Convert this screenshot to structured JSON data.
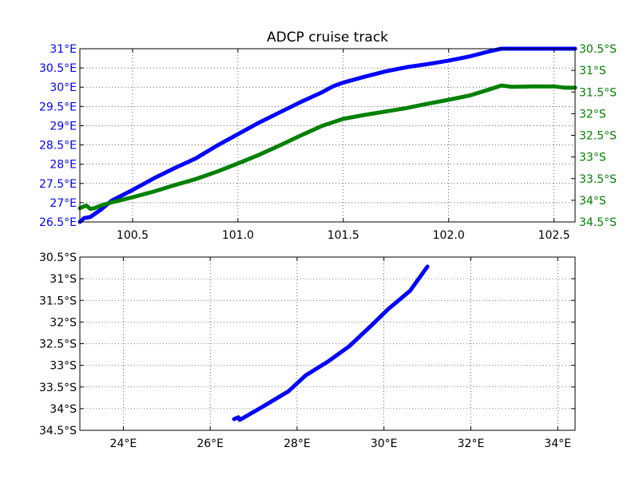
{
  "chart_data": [
    {
      "type": "line",
      "title": "ADCP cruise track",
      "xlabel": "",
      "ylabel": "",
      "xlim": [
        100.25,
        102.6
      ],
      "xticks": [
        100.5,
        101.0,
        101.5,
        102.0,
        102.5
      ],
      "xtick_labels": [
        "100.5",
        "101.0",
        "101.5",
        "102.0",
        "102.5"
      ],
      "grid": true,
      "left_axis": {
        "color": "#0000ff",
        "ylim": [
          26.5,
          31.0
        ],
        "ticks": [
          26.5,
          27.0,
          27.5,
          28.0,
          28.5,
          29.0,
          29.5,
          30.0,
          30.5,
          31.0
        ],
        "tick_labels": [
          "26.5°E",
          "27°E",
          "27.5°E",
          "28°E",
          "28.5°E",
          "29°E",
          "29.5°E",
          "30°E",
          "30.5°E",
          "31°E"
        ]
      },
      "right_axis": {
        "color": "#008000",
        "ylim": [
          -34.5,
          -30.5
        ],
        "ticks": [
          -34.5,
          -34.0,
          -33.5,
          -33.0,
          -32.5,
          -32.0,
          -31.5,
          -31.0,
          -30.5
        ],
        "tick_labels": [
          "34.5°S",
          "34°S",
          "33.5°S",
          "33°S",
          "32.5°S",
          "32°S",
          "31.5°S",
          "31°S",
          "30.5°S"
        ]
      },
      "series": [
        {
          "color": "#0000ff",
          "axis": "left",
          "x": [
            100.25,
            100.27,
            100.3,
            100.35,
            100.4,
            100.5,
            100.6,
            100.7,
            100.8,
            100.9,
            101.0,
            101.1,
            101.2,
            101.3,
            101.4,
            101.45,
            101.5,
            101.6,
            101.7,
            101.8,
            101.9,
            102.0,
            102.1,
            102.2,
            102.25,
            102.3,
            102.4,
            102.5,
            102.6
          ],
          "y": [
            26.5,
            26.6,
            26.63,
            26.82,
            27.05,
            27.33,
            27.63,
            27.9,
            28.15,
            28.48,
            28.78,
            29.08,
            29.35,
            29.62,
            29.87,
            30.02,
            30.12,
            30.27,
            30.41,
            30.52,
            30.6,
            30.69,
            30.8,
            30.94,
            31.0,
            31.0,
            31.0,
            31.0,
            31.0
          ]
        },
        {
          "color": "#008000",
          "axis": "right",
          "x": [
            100.25,
            100.28,
            100.3,
            100.32,
            100.35,
            100.4,
            100.5,
            100.6,
            100.7,
            100.8,
            100.9,
            101.0,
            101.1,
            101.2,
            101.3,
            101.4,
            101.5,
            101.6,
            101.7,
            101.8,
            101.9,
            102.0,
            102.1,
            102.2,
            102.25,
            102.3,
            102.4,
            102.5,
            102.55,
            102.6
          ],
          "y": [
            -34.18,
            -34.12,
            -34.2,
            -34.18,
            -34.12,
            -34.05,
            -33.93,
            -33.8,
            -33.65,
            -33.51,
            -33.34,
            -33.15,
            -32.95,
            -32.73,
            -32.5,
            -32.28,
            -32.12,
            -32.03,
            -31.95,
            -31.87,
            -31.77,
            -31.68,
            -31.58,
            -31.43,
            -31.35,
            -31.38,
            -31.37,
            -31.37,
            -31.4,
            -31.4
          ]
        }
      ]
    },
    {
      "type": "line",
      "title": "",
      "xlabel": "",
      "ylabel": "",
      "xlim": [
        23.0,
        34.4
      ],
      "ylim": [
        -34.5,
        -30.5
      ],
      "xticks": [
        24,
        26,
        28,
        30,
        32,
        34
      ],
      "xtick_labels": [
        "24°E",
        "26°E",
        "28°E",
        "30°E",
        "32°E",
        "34°E"
      ],
      "yticks": [
        -30.5,
        -31.0,
        -31.5,
        -32.0,
        -32.5,
        -33.0,
        -33.5,
        -34.0,
        -34.5
      ],
      "ytick_labels": [
        "30.5°S",
        "31°S",
        "31.5°S",
        "32°S",
        "32.5°S",
        "33°S",
        "33.5°S",
        "34°S",
        "34.5°S"
      ],
      "grid": true,
      "series": [
        {
          "color": "#0000ff",
          "x": [
            26.55,
            26.65,
            26.68,
            27.2,
            27.8,
            28.2,
            28.7,
            29.2,
            29.7,
            30.1,
            30.6,
            31.0
          ],
          "y": [
            -34.24,
            -34.2,
            -34.26,
            -33.96,
            -33.6,
            -33.23,
            -32.92,
            -32.56,
            -32.09,
            -31.7,
            -31.28,
            -30.72
          ]
        }
      ]
    }
  ]
}
